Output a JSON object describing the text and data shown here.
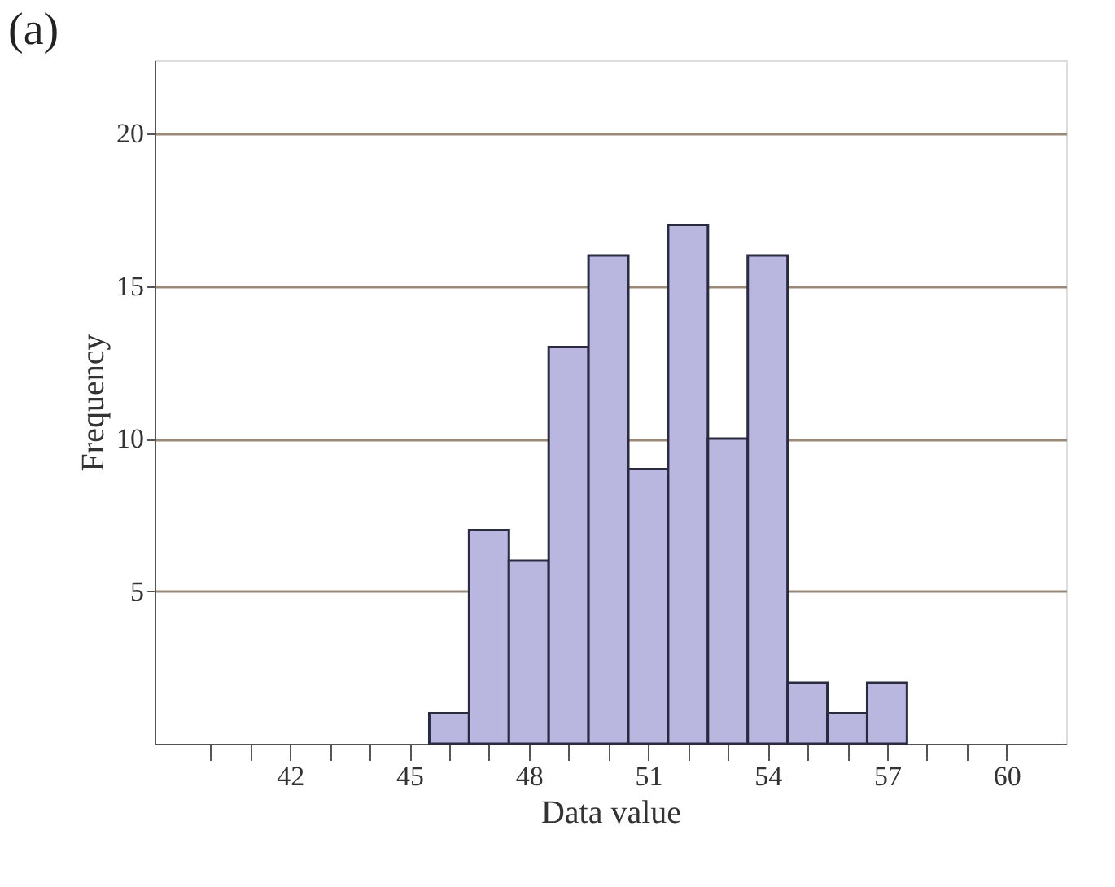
{
  "chart_data": {
    "type": "histogram",
    "title": "(a)",
    "xlabel": "Data value",
    "ylabel": "Frequency",
    "bins": [
      45.5,
      46.5,
      47.5,
      48.5,
      49.5,
      50.5,
      51.5,
      52.5,
      53.5,
      54.5,
      55.5,
      56.5,
      57.5
    ],
    "values": [
      1,
      7,
      6,
      13,
      16,
      9,
      17,
      10,
      16,
      2,
      1,
      2
    ],
    "color": "#b9b6e0",
    "xlim": [
      38.6,
      61.5
    ],
    "xticks": [
      {
        "value": 40,
        "label": null
      },
      {
        "value": 41,
        "label": null
      },
      42,
      {
        "value": 43,
        "label": null
      },
      {
        "value": 44,
        "label": null
      },
      45,
      {
        "value": 46,
        "label": null
      },
      {
        "value": 47,
        "label": null
      },
      48,
      {
        "value": 49,
        "label": null
      },
      {
        "value": 50,
        "label": null
      },
      51,
      {
        "value": 52,
        "label": null
      },
      {
        "value": 53,
        "label": null
      },
      54,
      {
        "value": 55,
        "label": null
      },
      {
        "value": 56,
        "label": null
      },
      57,
      {
        "value": 58,
        "label": null
      },
      {
        "value": 59,
        "label": null
      },
      60
    ],
    "ylim": [
      0,
      22.4
    ],
    "yticks": [
      5,
      10,
      15,
      20
    ],
    "grid": "y"
  }
}
